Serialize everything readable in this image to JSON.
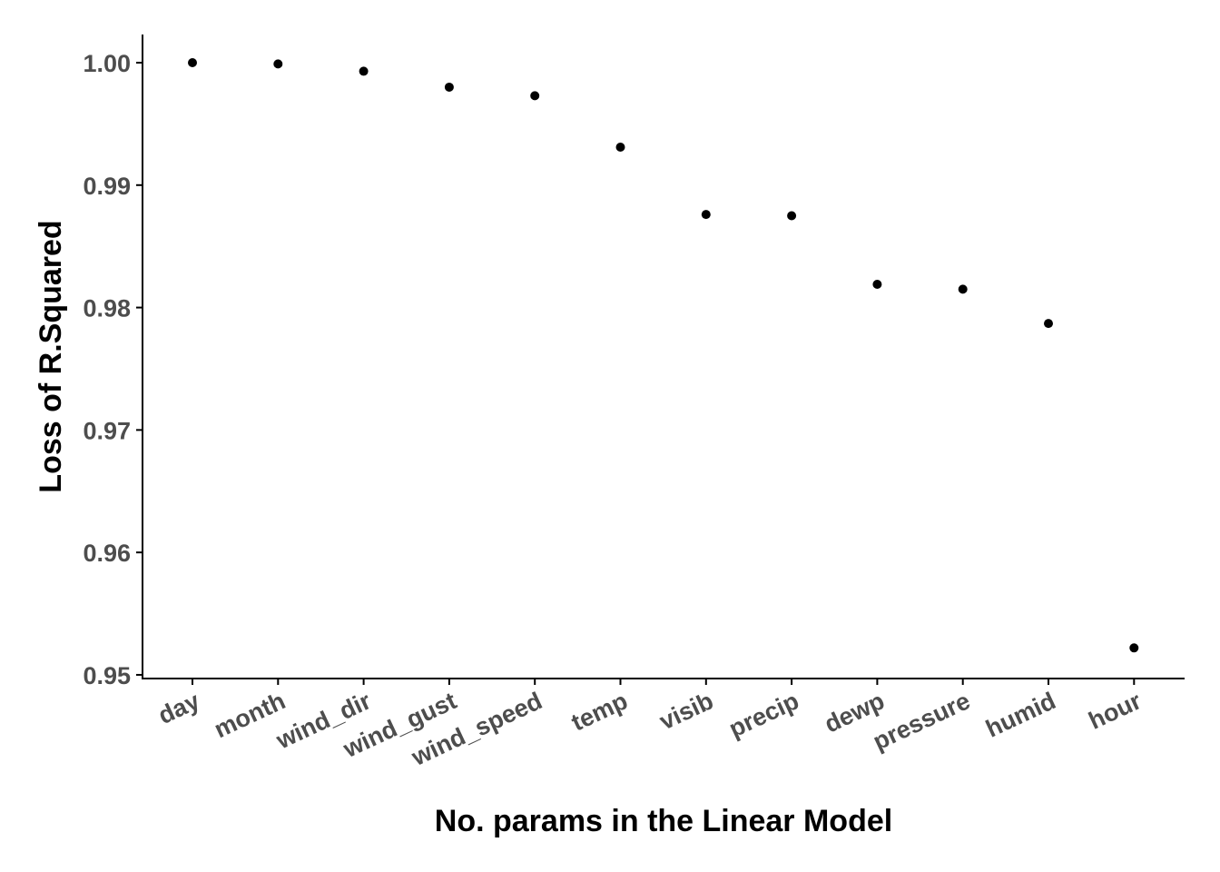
{
  "chart_data": {
    "type": "scatter",
    "xlabel": "No. params in the Linear Model",
    "ylabel": "Loss of R.Squared",
    "categories": [
      "day",
      "month",
      "wind_dir",
      "wind_gust",
      "wind_speed",
      "temp",
      "visib",
      "precip",
      "dewp",
      "pressure",
      "humid",
      "hour"
    ],
    "values": [
      1.0,
      0.9999,
      0.9993,
      0.998,
      0.9973,
      0.9931,
      0.9876,
      0.9875,
      0.9819,
      0.9815,
      0.9787,
      0.9522
    ],
    "yticks": [
      0.95,
      0.96,
      0.97,
      0.98,
      0.99,
      1.0
    ],
    "ytick_labels": [
      "0.95",
      "0.96",
      "0.97",
      "0.98",
      "0.99",
      "1.00"
    ],
    "ylim": [
      0.9497,
      1.0023
    ],
    "grid": false,
    "legend": "none",
    "point_color": "#000000"
  }
}
